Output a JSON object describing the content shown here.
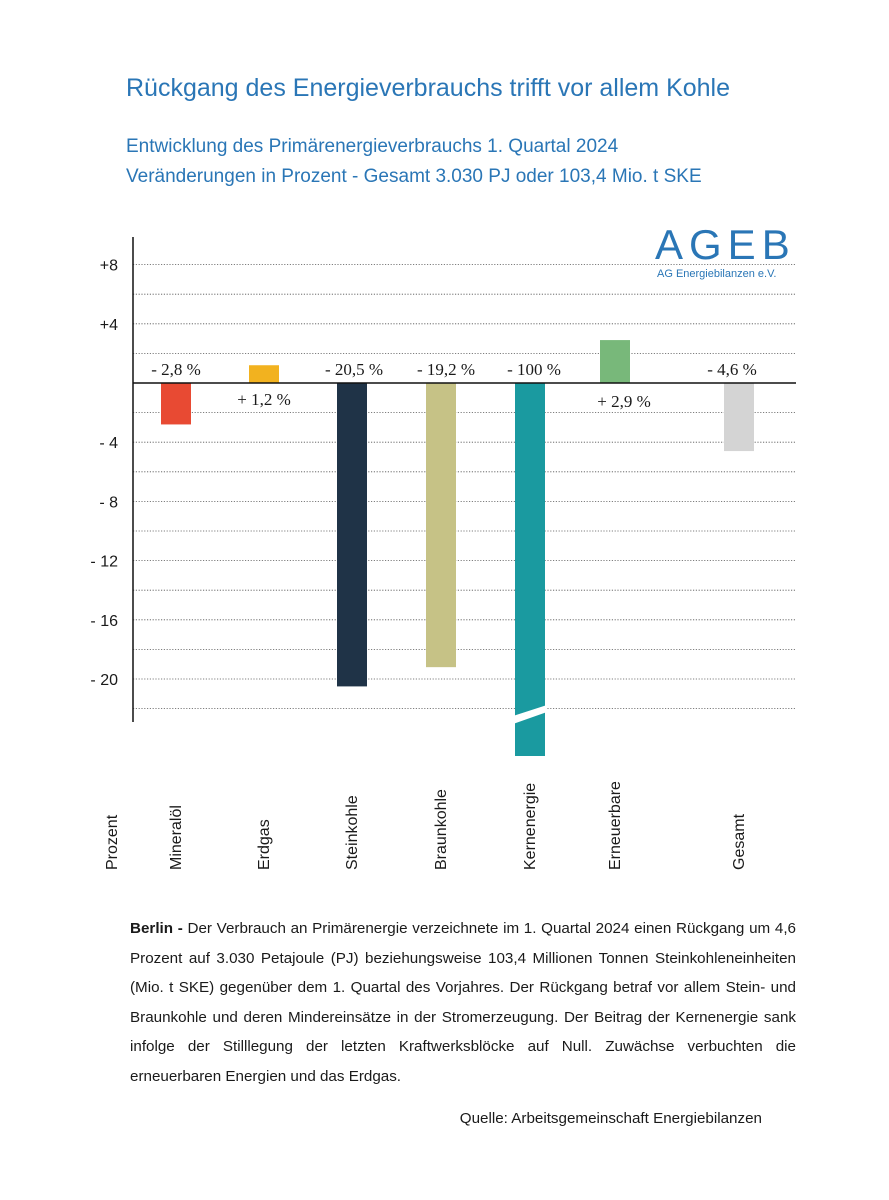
{
  "header": {
    "title": "Rückgang des Energieverbrauchs trifft vor allem Kohle",
    "subtitle_line1": "Entwicklung des Primärenergieverbrauchs 1. Quartal 2024",
    "subtitle_line2": "Veränderungen in Prozent - Gesamt 3.030 PJ oder 103,4 Mio. t SKE"
  },
  "logo": {
    "main": "AGEB",
    "sub": "AG Energiebilanzen e.V."
  },
  "chart_data": {
    "type": "bar",
    "ylabel": "Prozent",
    "ylim": [
      -22,
      8
    ],
    "grid": true,
    "y_ticks": [
      {
        "value": 8,
        "label": "+8"
      },
      {
        "value": 4,
        "label": "+4"
      },
      {
        "value": -4,
        "label": "- 4"
      },
      {
        "value": -8,
        "label": "- 8"
      },
      {
        "value": -12,
        "label": "- 12"
      },
      {
        "value": -16,
        "label": "- 16"
      },
      {
        "value": -20,
        "label": "- 20"
      }
    ],
    "categories": [
      "Mineralöl",
      "Erdgas",
      "Steinkohle",
      "Braunkohle",
      "Kernenergie",
      "Erneuerbare",
      "Gesamt"
    ],
    "values": [
      -2.8,
      1.2,
      -20.5,
      -19.2,
      -100,
      2.9,
      -4.6
    ],
    "data_labels": [
      "- 2,8 %",
      "+ 1,2 %",
      "- 20,5 %",
      "- 19,2 %",
      "- 100 %",
      "+ 2,9 %",
      "- 4,6 %"
    ],
    "colors": [
      "#e84a33",
      "#f2b21f",
      "#1f3347",
      "#c6c286",
      "#1a9aa0",
      "#78b87a",
      "#d4d4d4"
    ],
    "axis_break_category": "Kernenergie"
  },
  "body": {
    "lead": "Berlin -",
    "text": " Der Verbrauch an Primärenergie verzeichnete im 1. Quartal 2024 einen Rückgang um 4,6 Prozent auf 3.030 Petajoule (PJ) beziehungsweise 103,4 Millionen Tonnen Stein­kohleneinheiten (Mio. t SKE) gegenüber dem 1. Quartal des Vorjahres. Der Rückgang betraf vor allem Stein- und Braunkohle und deren Mindereinsätze in der Stromerzeugung. Der Beitrag der Kernenergie sank infolge der Stilllegung der letzten Kraftwerksblöcke auf Null. Zuwächse verbuchten die erneuerbaren Energien und das Erdgas."
  },
  "source": "Quelle: Arbeitsgemeinschaft Energiebilanzen"
}
